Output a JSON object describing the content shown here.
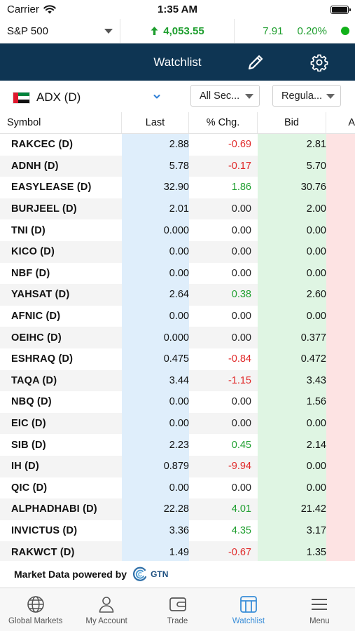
{
  "status_bar": {
    "carrier": "Carrier",
    "time": "1:35 AM"
  },
  "ticker": {
    "index_name": "S&P 500",
    "value": "4,053.55",
    "change": "7.91",
    "change_pct": "0.20%"
  },
  "navbar": {
    "title": "Watchlist"
  },
  "filters": {
    "exchange": "ADX (D)",
    "sector": "All Sec...",
    "board": "Regula..."
  },
  "table": {
    "headers": {
      "symbol": "Symbol",
      "last": "Last",
      "pct_chg": "% Chg.",
      "bid": "Bid",
      "ask": "A"
    },
    "rows": [
      {
        "symbol": "RAKCEC (D)",
        "last": "2.88",
        "pct_chg": "-0.69",
        "bid": "2.81",
        "dir": "neg"
      },
      {
        "symbol": "ADNH (D)",
        "last": "5.78",
        "pct_chg": "-0.17",
        "bid": "5.70",
        "dir": "neg"
      },
      {
        "symbol": "EASYLEASE (D)",
        "last": "32.90",
        "pct_chg": "1.86",
        "bid": "30.76",
        "dir": "pos"
      },
      {
        "symbol": "BURJEEL (D)",
        "last": "2.01",
        "pct_chg": "0.00",
        "bid": "2.00",
        "dir": "neu"
      },
      {
        "symbol": "TNI (D)",
        "last": "0.000",
        "pct_chg": "0.00",
        "bid": "0.00",
        "dir": "neu"
      },
      {
        "symbol": "KICO (D)",
        "last": "0.00",
        "pct_chg": "0.00",
        "bid": "0.00",
        "dir": "neu"
      },
      {
        "symbol": "NBF (D)",
        "last": "0.00",
        "pct_chg": "0.00",
        "bid": "0.00",
        "dir": "neu"
      },
      {
        "symbol": "YAHSAT (D)",
        "last": "2.64",
        "pct_chg": "0.38",
        "bid": "2.60",
        "dir": "pos"
      },
      {
        "symbol": "AFNIC (D)",
        "last": "0.00",
        "pct_chg": "0.00",
        "bid": "0.00",
        "dir": "neu"
      },
      {
        "symbol": "OEIHC (D)",
        "last": "0.000",
        "pct_chg": "0.00",
        "bid": "0.377",
        "dir": "neu"
      },
      {
        "symbol": "ESHRAQ (D)",
        "last": "0.475",
        "pct_chg": "-0.84",
        "bid": "0.472",
        "dir": "neg"
      },
      {
        "symbol": "TAQA (D)",
        "last": "3.44",
        "pct_chg": "-1.15",
        "bid": "3.43",
        "dir": "neg"
      },
      {
        "symbol": "NBQ (D)",
        "last": "0.00",
        "pct_chg": "0.00",
        "bid": "1.56",
        "dir": "neu"
      },
      {
        "symbol": "EIC (D)",
        "last": "0.00",
        "pct_chg": "0.00",
        "bid": "0.00",
        "dir": "neu"
      },
      {
        "symbol": "SIB (D)",
        "last": "2.23",
        "pct_chg": "0.45",
        "bid": "2.14",
        "dir": "pos"
      },
      {
        "symbol": "IH (D)",
        "last": "0.879",
        "pct_chg": "-9.94",
        "bid": "0.00",
        "dir": "neg"
      },
      {
        "symbol": "QIC (D)",
        "last": "0.00",
        "pct_chg": "0.00",
        "bid": "0.00",
        "dir": "neu"
      },
      {
        "symbol": "ALPHADHABI (D)",
        "last": "22.28",
        "pct_chg": "4.01",
        "bid": "21.42",
        "dir": "pos"
      },
      {
        "symbol": "INVICTUS (D)",
        "last": "3.36",
        "pct_chg": "4.35",
        "bid": "3.17",
        "dir": "pos"
      },
      {
        "symbol": "RAKWCT (D)",
        "last": "1.49",
        "pct_chg": "-0.67",
        "bid": "1.35",
        "dir": "neg"
      }
    ]
  },
  "footer": {
    "powered_by": "Market Data powered by",
    "logo_text": "GTN"
  },
  "tabbar": {
    "items": [
      {
        "label": "Global Markets",
        "icon": "globe-icon"
      },
      {
        "label": "My Account",
        "icon": "person-icon"
      },
      {
        "label": "Trade",
        "icon": "wallet-icon"
      },
      {
        "label": "Watchlist",
        "icon": "watchlist-icon",
        "active": true
      },
      {
        "label": "Menu",
        "icon": "hamburger-icon"
      }
    ]
  },
  "colors": {
    "navbar": "#0e3553",
    "positive": "#1e9e2e",
    "negative": "#e02828",
    "active_tab": "#3a8ed8"
  }
}
